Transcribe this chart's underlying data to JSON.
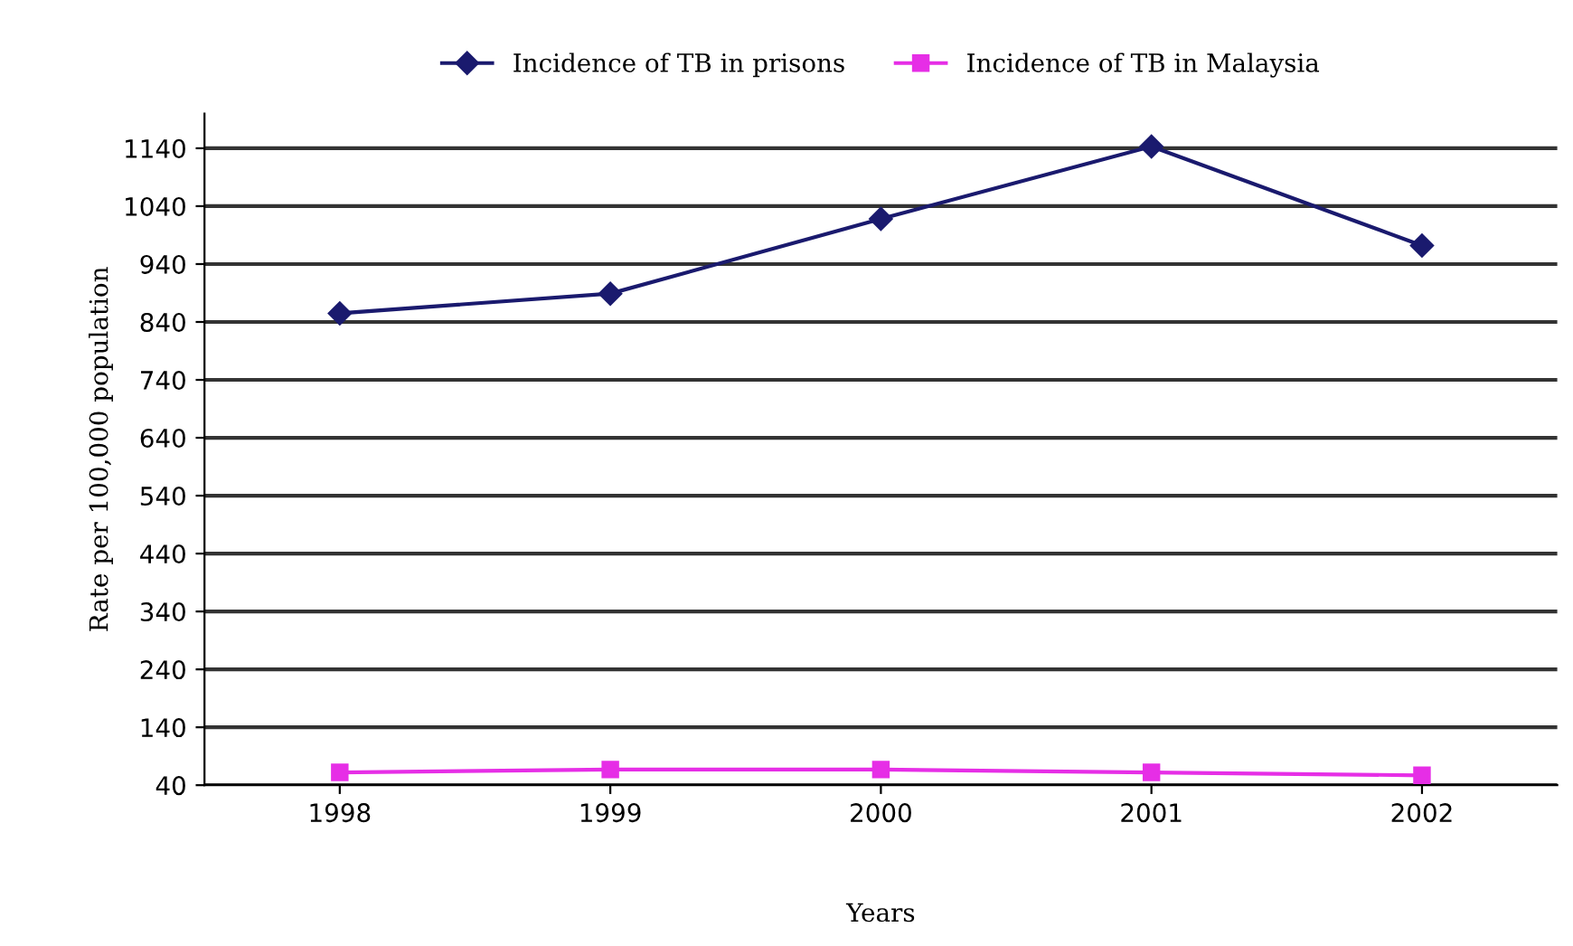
{
  "chart_data": {
    "type": "line",
    "xlabel": "Years",
    "ylabel": "Rate per 100,000 population",
    "categories": [
      "1998",
      "1999",
      "2000",
      "2001",
      "2002"
    ],
    "series": [
      {
        "name": "Incidence of TB in prisons",
        "color": "#1a1a6e",
        "marker": "diamond",
        "values": [
          855,
          889,
          1018,
          1143,
          972
        ]
      },
      {
        "name": "Incidence of TB in Malaysia",
        "color": "#e62ee6",
        "marker": "square",
        "values": [
          62,
          67,
          67,
          62,
          57
        ]
      }
    ],
    "ylim": [
      40,
      1200
    ],
    "yticks": [
      40,
      140,
      240,
      340,
      440,
      540,
      640,
      740,
      840,
      940,
      1040,
      1140
    ],
    "grid": "y",
    "legend": "top"
  }
}
